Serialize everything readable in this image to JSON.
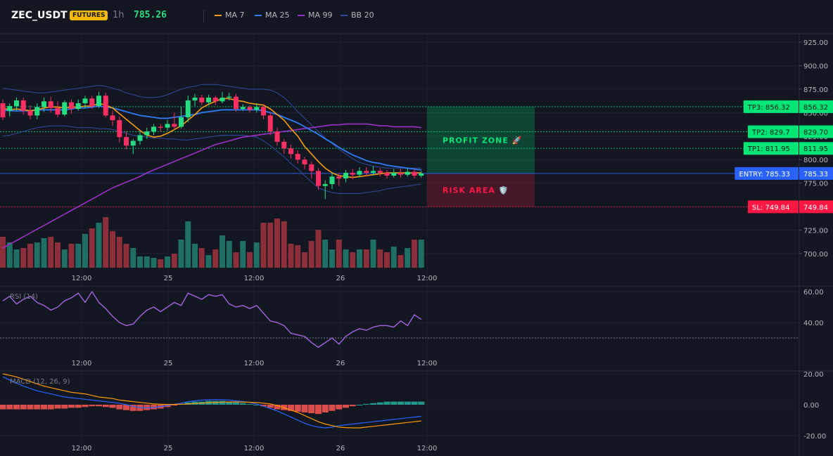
{
  "header": {
    "symbol": "ZEC_USDT",
    "badge": "FUTURES",
    "interval": "1h",
    "price": "785.26",
    "legend": [
      {
        "label": "MA 7",
        "color": "#f39c12"
      },
      {
        "label": "MA 25",
        "color": "#2f7bf5"
      },
      {
        "label": "MA 99",
        "color": "#9b30c8"
      },
      {
        "label": "BB 20",
        "color": "#2e4a9e"
      }
    ]
  },
  "chart_data": [
    {
      "type": "candlestick",
      "title": "ZEC_USDT",
      "x_ticks": [
        "12:00",
        "25",
        "12:00",
        "26",
        "12:00"
      ],
      "y_ticks": [
        "925.00",
        "900.00",
        "875.00",
        "850.00",
        "825.00",
        "800.00",
        "775.00",
        "750.00",
        "725.00",
        "700.00"
      ],
      "ylim": [
        685,
        935
      ],
      "grid": true,
      "colors": {
        "up": "#26de81",
        "down": "#ff2e63",
        "vol_up": "#1f6f64",
        "vol_down": "#8c2f3b"
      },
      "candles": [
        [
          860,
          845,
          864,
          842
        ],
        [
          852,
          857,
          860,
          846
        ],
        [
          857,
          863,
          866,
          852
        ],
        [
          863,
          852,
          866,
          848
        ],
        [
          852,
          847,
          858,
          843
        ],
        [
          847,
          856,
          860,
          843
        ],
        [
          856,
          862,
          866,
          851
        ],
        [
          862,
          855,
          867,
          850
        ],
        [
          855,
          848,
          862,
          845
        ],
        [
          848,
          861,
          863,
          846
        ],
        [
          861,
          854,
          864,
          849
        ],
        [
          854,
          860,
          864,
          852
        ],
        [
          860,
          865,
          868,
          855
        ],
        [
          865,
          857,
          868,
          854
        ],
        [
          857,
          868,
          872,
          855
        ],
        [
          868,
          847,
          871,
          845
        ],
        [
          847,
          842,
          852,
          836
        ],
        [
          842,
          824,
          846,
          818
        ],
        [
          824,
          815,
          830,
          811
        ],
        [
          815,
          820,
          822,
          806
        ],
        [
          820,
          826,
          830,
          816
        ],
        [
          826,
          830,
          834,
          822
        ],
        [
          830,
          835,
          838,
          826
        ],
        [
          835,
          834,
          838,
          830
        ],
        [
          834,
          838,
          842,
          831
        ],
        [
          838,
          835,
          850,
          832
        ],
        [
          835,
          845,
          856,
          833
        ],
        [
          845,
          863,
          868,
          840
        ],
        [
          863,
          866,
          870,
          857
        ],
        [
          866,
          861,
          869,
          858
        ],
        [
          861,
          866,
          869,
          858
        ],
        [
          866,
          862,
          868,
          858
        ],
        [
          862,
          866,
          872,
          860
        ],
        [
          866,
          867,
          871,
          863
        ],
        [
          867,
          854,
          870,
          851
        ],
        [
          854,
          856,
          859,
          852
        ],
        [
          856,
          853,
          858,
          850
        ],
        [
          853,
          856,
          860,
          850
        ],
        [
          856,
          847,
          859,
          843
        ],
        [
          847,
          830,
          850,
          826
        ],
        [
          830,
          819,
          834,
          815
        ],
        [
          819,
          812,
          822,
          806
        ],
        [
          812,
          806,
          816,
          801
        ],
        [
          806,
          800,
          810,
          796
        ],
        [
          800,
          795,
          803,
          790
        ],
        [
          795,
          788,
          798,
          780
        ],
        [
          788,
          772,
          791,
          768
        ],
        [
          772,
          774,
          778,
          758
        ],
        [
          774,
          782,
          786,
          769
        ],
        [
          782,
          780,
          786,
          772
        ],
        [
          780,
          786,
          789,
          776
        ],
        [
          786,
          784,
          790,
          779
        ],
        [
          784,
          788,
          792,
          781
        ],
        [
          788,
          786,
          792,
          782
        ],
        [
          786,
          788,
          793,
          783
        ],
        [
          788,
          786,
          791,
          782
        ],
        [
          786,
          783,
          789,
          780
        ],
        [
          783,
          786,
          790,
          781
        ],
        [
          786,
          784,
          790,
          781
        ],
        [
          784,
          787,
          791,
          782
        ],
        [
          787,
          783,
          790,
          780
        ],
        [
          783,
          785.26,
          788,
          781
        ]
      ],
      "volumes": [
        22,
        18,
        13,
        14,
        17,
        18,
        21,
        22,
        18,
        13,
        17,
        17,
        24,
        28,
        32,
        36,
        26,
        22,
        17,
        14,
        8,
        8,
        7,
        6,
        8,
        10,
        20,
        33,
        17,
        14,
        9,
        13,
        23,
        19,
        11,
        19,
        11,
        18,
        32,
        32,
        35,
        33,
        17,
        16,
        11,
        19,
        27,
        20,
        13,
        20,
        13,
        11,
        13,
        13,
        20,
        13,
        11,
        15,
        9,
        14,
        20,
        20
      ],
      "series": [
        {
          "name": "MA 7",
          "values": [
            855,
            853,
            854,
            853,
            852,
            853,
            855,
            856,
            856,
            855,
            856,
            856,
            857,
            857,
            860,
            858,
            855,
            849,
            843,
            837,
            831,
            826,
            824,
            825,
            828,
            832,
            836,
            842,
            848,
            855,
            859,
            862,
            865,
            865,
            863,
            862,
            860,
            859,
            858,
            854,
            848,
            842,
            833,
            825,
            814,
            806,
            798,
            791,
            786,
            783,
            782,
            781,
            782,
            783,
            784,
            785,
            786,
            786,
            786,
            786,
            786,
            786
          ]
        },
        {
          "name": "MA 25",
          "values": [
            853,
            852,
            852,
            852,
            852,
            853,
            853,
            853,
            853,
            853,
            854,
            855,
            855,
            856,
            857,
            856,
            855,
            853,
            851,
            849,
            847,
            846,
            845,
            844,
            844,
            845,
            846,
            847,
            848,
            850,
            851,
            852,
            853,
            853,
            853,
            853,
            853,
            853,
            852,
            850,
            848,
            845,
            842,
            839,
            835,
            831,
            827,
            822,
            818,
            813,
            809,
            805,
            802,
            799,
            797,
            796,
            794,
            793,
            792,
            791,
            790,
            789
          ]
        },
        {
          "name": "MA 99",
          "values": [
            706,
            710,
            714,
            718,
            722,
            726,
            730,
            734,
            738,
            742,
            746,
            750,
            754,
            758,
            762,
            766,
            770,
            773,
            776,
            779,
            782,
            786,
            789,
            792,
            795,
            798,
            801,
            804,
            807,
            810,
            813,
            816,
            818,
            820,
            822,
            824,
            825,
            826,
            827,
            828,
            829,
            830,
            831,
            832,
            833,
            834,
            835,
            836,
            837,
            837,
            838,
            838,
            838,
            838,
            837,
            836,
            836,
            835,
            835,
            835,
            835,
            834
          ]
        },
        {
          "name": "BB 20 upper",
          "values": [
            876,
            875,
            874,
            873,
            872,
            871,
            871,
            872,
            873,
            874,
            875,
            876,
            877,
            878,
            879,
            878,
            876,
            874,
            871,
            869,
            867,
            866,
            866,
            867,
            869,
            872,
            875,
            877,
            878,
            880,
            880,
            880,
            879,
            878,
            877,
            876,
            875,
            875,
            875,
            874,
            871,
            866,
            859,
            851,
            844,
            837,
            830,
            823,
            817,
            811,
            806,
            801,
            797,
            795,
            793,
            792,
            791,
            791,
            791,
            791,
            791,
            791
          ]
        },
        {
          "name": "BB 20 lower",
          "values": [
            825,
            826,
            828,
            830,
            832,
            834,
            835,
            836,
            836,
            836,
            835,
            834,
            834,
            834,
            833,
            833,
            832,
            830,
            828,
            826,
            825,
            824,
            823,
            823,
            822,
            822,
            821,
            821,
            822,
            823,
            824,
            825,
            826,
            826,
            826,
            826,
            825,
            824,
            820,
            815,
            809,
            803,
            796,
            790,
            783,
            776,
            770,
            767,
            765,
            764,
            764,
            764,
            764,
            765,
            766,
            767,
            769,
            770,
            771,
            772,
            773,
            774
          ]
        }
      ],
      "trade_levels": [
        {
          "label": "TP3: 856.32",
          "price": "856.32",
          "value": 856.32,
          "color": "#00e676"
        },
        {
          "label": "TP2: 829.7",
          "price": "829.70",
          "value": 829.7,
          "color": "#00e676"
        },
        {
          "label": "TP1: 811.95",
          "price": "811.95",
          "value": 811.95,
          "color": "#00e676"
        },
        {
          "label": "ENTRY: 785.33",
          "price": "785.33",
          "value": 785.33,
          "color": "#2962ff"
        },
        {
          "label": "SL: 749.84",
          "price": "749.84",
          "value": 749.84,
          "color": "#ff1744"
        }
      ],
      "zones": [
        {
          "label": "PROFIT ZONE 🚀",
          "from": 785.33,
          "to": 856.32,
          "color": "#00e676"
        },
        {
          "label": "RISK AREA 🛡️",
          "from": 749.84,
          "to": 785.33,
          "color": "#ff1744"
        }
      ]
    },
    {
      "type": "line",
      "title": "RSI (14)",
      "x_ticks": [
        "12:00",
        "25",
        "12:00",
        "26",
        "12:00"
      ],
      "y_ticks": [
        "60.00",
        "40.00"
      ],
      "ylim": [
        18,
        65
      ],
      "reference_line": 30,
      "series": [
        {
          "name": "RSI (14)",
          "values": [
            54,
            57,
            52,
            55,
            57,
            53,
            51,
            48,
            50,
            54,
            56,
            59,
            53,
            60,
            53,
            49,
            44,
            40,
            38,
            39,
            44,
            48,
            50,
            47,
            50,
            53,
            51,
            59,
            57,
            55,
            58,
            57,
            58,
            52,
            50,
            51,
            49,
            51,
            46,
            41,
            40,
            38,
            33,
            32,
            31,
            27,
            24,
            27,
            30,
            26,
            31,
            34,
            36,
            35,
            37,
            38,
            38,
            37,
            41,
            38,
            45,
            42
          ]
        }
      ]
    },
    {
      "type": "bar",
      "title": "MACD (12, 26, 9)",
      "x_ticks": [
        "12:00",
        "25",
        "12:00",
        "26",
        "12:00"
      ],
      "y_ticks": [
        "20.00",
        "0.00",
        "-20.00"
      ],
      "ylim": [
        -21,
        21
      ],
      "colors": {
        "positive": "#26a69a",
        "negative": "#ef5350"
      },
      "histogram": [
        -3,
        -3,
        -3,
        -3,
        -3,
        -3,
        -3,
        -3,
        -2.5,
        -2.5,
        -2,
        -2,
        -1.5,
        -1,
        -1,
        -1.5,
        -2,
        -3,
        -3.5,
        -4,
        -4,
        -3.5,
        -3,
        -2.5,
        -1.5,
        -0.5,
        0.5,
        1.5,
        2,
        2,
        2.5,
        2.5,
        2.5,
        2,
        1.5,
        1,
        0.5,
        0,
        -1,
        -2,
        -3,
        -3.5,
        -4,
        -4.5,
        -5,
        -5.5,
        -6,
        -5,
        -4,
        -3,
        -2,
        -1,
        0,
        0.5,
        1,
        1.5,
        2,
        2,
        2,
        2,
        2,
        2
      ],
      "series": [
        {
          "name": "MACD",
          "values": [
            18,
            16,
            14,
            12,
            10.5,
            9,
            8,
            7,
            6,
            5,
            4.5,
            4,
            3.5,
            3,
            2.5,
            2,
            1.5,
            1,
            0,
            -1,
            -2,
            -2,
            -1.8,
            -1.2,
            -0.5,
            0.3,
            1,
            2,
            2.5,
            3,
            3.2,
            3.3,
            3.2,
            3,
            2.5,
            2,
            1.5,
            0.5,
            -1,
            -2.5,
            -4,
            -6,
            -8,
            -10,
            -12,
            -13.5,
            -14.5,
            -15,
            -14.5,
            -13.5,
            -13,
            -12.5,
            -12,
            -11.5,
            -11,
            -10.5,
            -10,
            -9.5,
            -9,
            -8.5,
            -8,
            -7.5
          ]
        },
        {
          "name": "Signal",
          "values": [
            20,
            19,
            18,
            16.5,
            15,
            13.5,
            12,
            11,
            10,
            9,
            8,
            7.5,
            7,
            6,
            5,
            4.5,
            4,
            3,
            2.5,
            2,
            1.5,
            1,
            0.5,
            0.3,
            0.2,
            0.2,
            0.3,
            0.5,
            0.8,
            1,
            1.3,
            1.5,
            1.7,
            1.8,
            1.8,
            1.7,
            1.6,
            1.4,
            1,
            0.5,
            -0.5,
            -2,
            -3.5,
            -5,
            -7,
            -9,
            -11,
            -12.5,
            -13.5,
            -14.5,
            -14.8,
            -15,
            -15,
            -14.5,
            -14,
            -13.5,
            -13,
            -12.5,
            -12,
            -11.5,
            -11,
            -10.5
          ]
        }
      ]
    }
  ]
}
